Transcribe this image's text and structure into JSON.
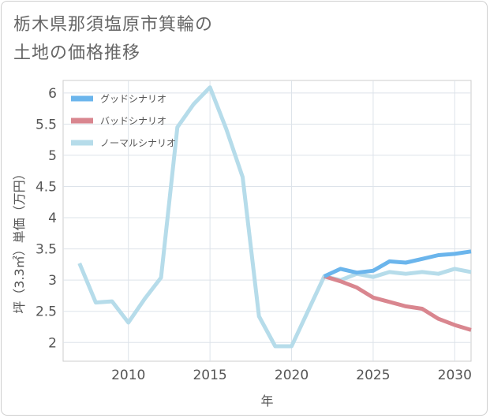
{
  "header": {
    "title_line1": "栃木県那須塩原市箕輪の",
    "title_line2": "土地の価格推移"
  },
  "chart_data": {
    "type": "line",
    "xlabel": "年",
    "ylabel": "坪（3.3㎡）単価（万円）",
    "xlim": [
      2006,
      2031
    ],
    "ylim": [
      1.7,
      6.2
    ],
    "x_ticks": [
      2010,
      2015,
      2020,
      2025,
      2030
    ],
    "y_ticks": [
      2,
      2.5,
      3,
      3.5,
      4,
      4.5,
      5,
      5.5,
      6
    ],
    "grid": true,
    "legend_position": "top-left",
    "series": [
      {
        "name": "グッドシナリオ",
        "color": "#6bb5ec",
        "x": [
          2022,
          2023,
          2024,
          2025,
          2026,
          2027,
          2028,
          2029,
          2030,
          2031
        ],
        "y": [
          3.06,
          3.18,
          3.12,
          3.15,
          3.3,
          3.28,
          3.34,
          3.4,
          3.42,
          3.46
        ]
      },
      {
        "name": "バッドシナリオ",
        "color": "#d9868f",
        "x": [
          2022,
          2023,
          2024,
          2025,
          2026,
          2027,
          2028,
          2029,
          2030,
          2031
        ],
        "y": [
          3.06,
          2.98,
          2.88,
          2.72,
          2.65,
          2.58,
          2.54,
          2.38,
          2.28,
          2.2
        ]
      },
      {
        "name": "ノーマルシナリオ",
        "color": "#b6dcea",
        "x": [
          2007,
          2008,
          2009,
          2010,
          2011,
          2012,
          2013,
          2014,
          2015,
          2016,
          2017,
          2018,
          2019,
          2020,
          2021,
          2022,
          2023,
          2024,
          2025,
          2026,
          2027,
          2028,
          2029,
          2030,
          2031
        ],
        "y": [
          3.27,
          2.64,
          2.66,
          2.32,
          2.7,
          3.04,
          5.45,
          5.82,
          6.09,
          5.42,
          4.65,
          2.42,
          1.94,
          1.94,
          2.5,
          3.06,
          3.0,
          3.1,
          3.05,
          3.13,
          3.1,
          3.13,
          3.1,
          3.18,
          3.13
        ]
      }
    ]
  }
}
